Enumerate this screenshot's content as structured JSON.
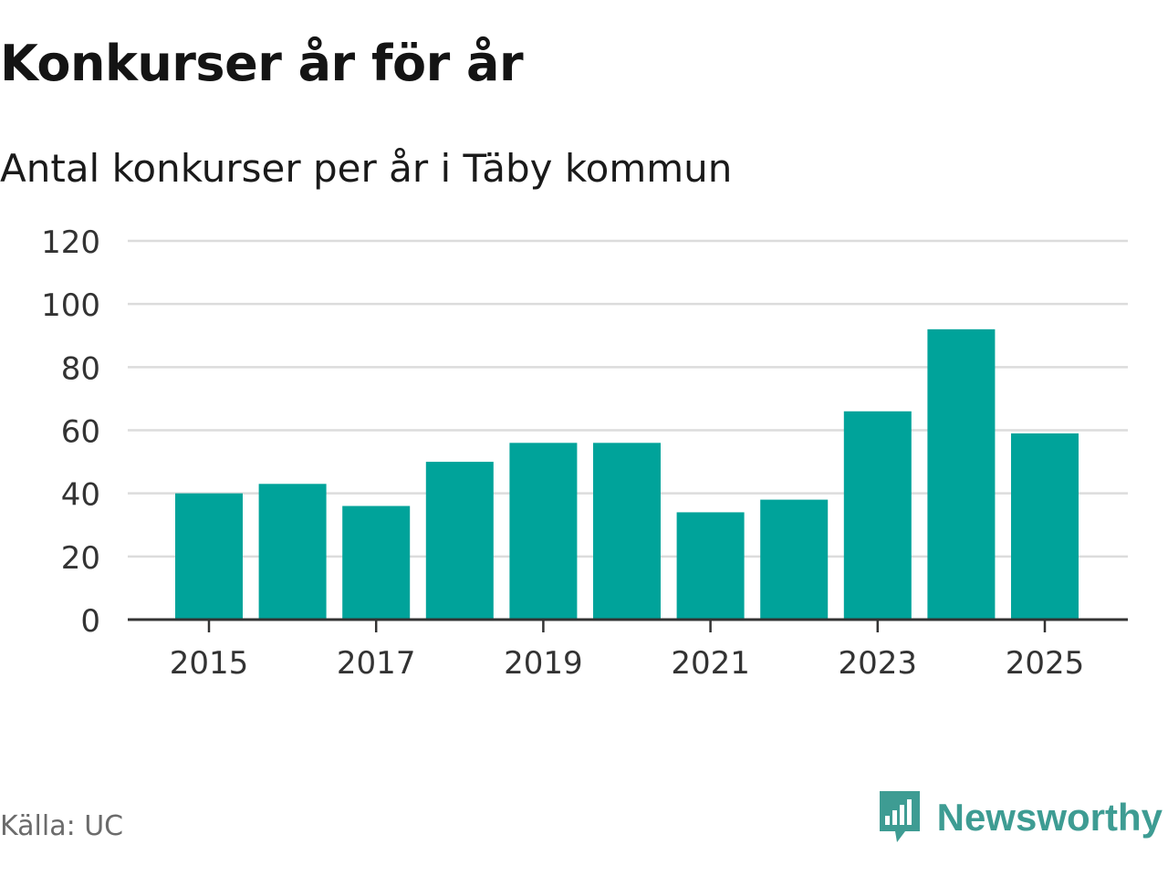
{
  "title": "Konkurser år för år",
  "subtitle": "Antal konkurser per år i Täby kommun",
  "source": "Källa: UC",
  "brand": {
    "name": "Newsworthy",
    "icon": "newsworthy-logo-icon",
    "color": "#3e9c93"
  },
  "chart_data": {
    "type": "bar",
    "categories": [
      "2015",
      "2016",
      "2017",
      "2018",
      "2019",
      "2020",
      "2021",
      "2022",
      "2023",
      "2024",
      "2025"
    ],
    "values": [
      40,
      43,
      36,
      50,
      56,
      56,
      34,
      38,
      66,
      92,
      59
    ],
    "x_tick_labels": [
      "2015",
      "2017",
      "2019",
      "2021",
      "2023",
      "2025"
    ],
    "y_ticks": [
      0,
      20,
      40,
      60,
      80,
      100,
      120
    ],
    "ylim": [
      0,
      120
    ],
    "xlabel": "",
    "ylabel": "",
    "grid": true,
    "legend": "none",
    "bar_color": "#00a39a",
    "grid_color": "#dcdcdc",
    "axis_color": "#333333"
  }
}
